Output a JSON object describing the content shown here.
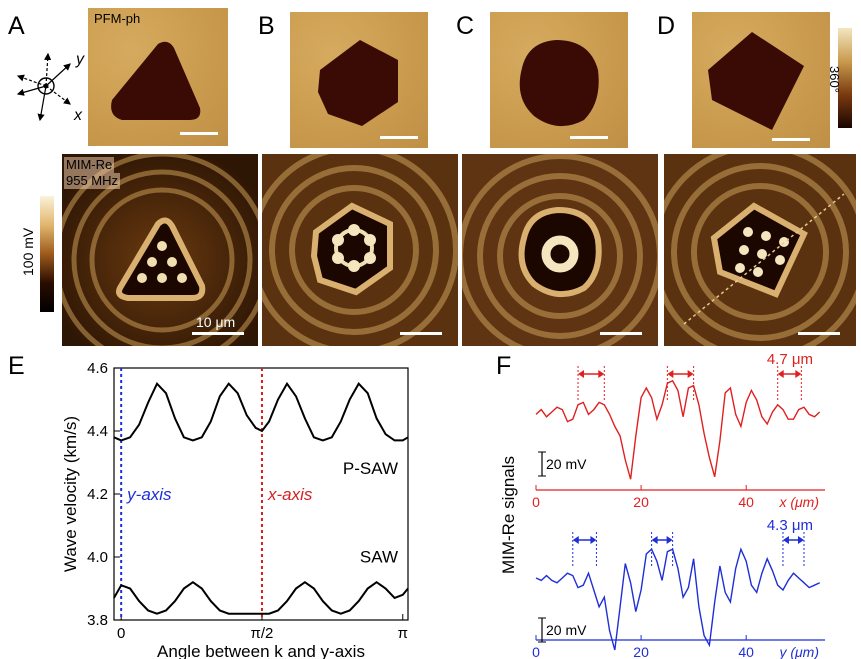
{
  "panels": {
    "A": "A",
    "B": "B",
    "C": "C",
    "D": "D",
    "E": "E",
    "F": "F"
  },
  "top_row": {
    "pfm_tag": "PFM-ph",
    "mim_tag_line1": "MIM-Re",
    "mim_tag_line2": "955 MHz",
    "scale_label": "10 μm",
    "phase_colorbar_label": "360°",
    "mim_colorbar_label": "100 mV",
    "axes_x": "x",
    "axes_y": "y"
  },
  "chart_data": [
    {
      "type": "line",
      "panel": "E",
      "xlabel": "Angle between k and y-axis",
      "ylabel": "Wave velocity (km/s)",
      "xlim": [
        -0.08,
        3.2
      ],
      "ylim": [
        3.8,
        4.6
      ],
      "yticks": [
        "3.8",
        "4.0",
        "4.2",
        "4.4",
        "4.6"
      ],
      "xticks": [
        "0",
        "π/2",
        "π"
      ],
      "xtick_values": [
        0,
        1.5708,
        3.1416
      ],
      "annotations": [
        {
          "text": "y-axis",
          "x": 0,
          "color": "#1f2fd6"
        },
        {
          "text": "x-axis",
          "x": 1.5708,
          "color": "#d62020"
        }
      ],
      "series": [
        {
          "name": "P-SAW",
          "x": [
            -0.08,
            0,
            0.1,
            0.2,
            0.3,
            0.4,
            0.5,
            0.6,
            0.7,
            0.8,
            0.9,
            1.0,
            1.1,
            1.2,
            1.3,
            1.4,
            1.5,
            1.5708,
            1.65,
            1.75,
            1.85,
            1.95,
            2.05,
            2.15,
            2.25,
            2.35,
            2.45,
            2.55,
            2.65,
            2.75,
            2.85,
            2.95,
            3.05,
            3.1416,
            3.2
          ],
          "values": [
            4.38,
            4.37,
            4.38,
            4.42,
            4.49,
            4.55,
            4.52,
            4.44,
            4.38,
            4.37,
            4.38,
            4.43,
            4.51,
            4.55,
            4.52,
            4.45,
            4.41,
            4.4,
            4.43,
            4.5,
            4.55,
            4.51,
            4.44,
            4.38,
            4.37,
            4.38,
            4.43,
            4.5,
            4.55,
            4.52,
            4.44,
            4.39,
            4.37,
            4.37,
            4.38
          ]
        },
        {
          "name": "SAW",
          "x": [
            -0.08,
            0,
            0.1,
            0.2,
            0.3,
            0.4,
            0.5,
            0.6,
            0.7,
            0.8,
            0.9,
            1.0,
            1.1,
            1.2,
            1.3,
            1.4,
            1.5,
            1.5708,
            1.65,
            1.75,
            1.85,
            1.95,
            2.05,
            2.15,
            2.25,
            2.35,
            2.45,
            2.55,
            2.65,
            2.75,
            2.85,
            2.95,
            3.05,
            3.1416,
            3.2
          ],
          "values": [
            3.87,
            3.91,
            3.9,
            3.86,
            3.83,
            3.82,
            3.83,
            3.86,
            3.9,
            3.92,
            3.9,
            3.86,
            3.83,
            3.82,
            3.82,
            3.82,
            3.82,
            3.82,
            3.82,
            3.83,
            3.86,
            3.9,
            3.92,
            3.9,
            3.86,
            3.83,
            3.82,
            3.83,
            3.86,
            3.9,
            3.92,
            3.9,
            3.87,
            3.88,
            3.9
          ]
        }
      ]
    },
    {
      "type": "line",
      "panel": "F",
      "ylabel": "MIM-Re signals",
      "scale_label": "20 mV",
      "subplots": [
        {
          "xlabel": "x (μm)",
          "color": "#e02020",
          "xlim": [
            0,
            55
          ],
          "xticks": [
            "0",
            "20",
            "40"
          ],
          "xtick_values": [
            0,
            20,
            40
          ],
          "annotation": "4.7 μm",
          "x": [
            0,
            1,
            2,
            3,
            4,
            5,
            6,
            7,
            8,
            9,
            10,
            11,
            12,
            13,
            14,
            15,
            16,
            17,
            18,
            19,
            20,
            21,
            22,
            23,
            24,
            25,
            26,
            27,
            28,
            29,
            30,
            31,
            32,
            33,
            34,
            35,
            36,
            37,
            38,
            39,
            40,
            41,
            42,
            43,
            44,
            45,
            46,
            47,
            48,
            49,
            50,
            51,
            52,
            53,
            54
          ],
          "values": [
            -1,
            1,
            -2,
            0,
            2,
            1,
            -4,
            -3,
            3,
            4,
            -1,
            1,
            4,
            3,
            -1,
            -6,
            -10,
            -20,
            -28,
            -10,
            6,
            10,
            6,
            -3,
            3,
            12,
            13,
            9,
            -2,
            10,
            11,
            3,
            -9,
            -19,
            -27,
            -12,
            8,
            10,
            -1,
            -6,
            4,
            9,
            5,
            -2,
            -5,
            0,
            3,
            1,
            -3,
            -3,
            1,
            2,
            -1,
            -2,
            0
          ]
        },
        {
          "xlabel": "y (μm)",
          "color": "#1f2fd6",
          "xlim": [
            0,
            55
          ],
          "xticks": [
            "0",
            "20",
            "40"
          ],
          "xtick_values": [
            0,
            20,
            40
          ],
          "annotation": "4.3 μm",
          "x": [
            0,
            1,
            2,
            3,
            4,
            5,
            6,
            7,
            8,
            9,
            10,
            11,
            12,
            13,
            14,
            15,
            16,
            17,
            18,
            19,
            20,
            21,
            22,
            23,
            24,
            25,
            26,
            27,
            28,
            29,
            30,
            31,
            32,
            33,
            34,
            35,
            36,
            37,
            38,
            39,
            40,
            41,
            42,
            43,
            44,
            45,
            46,
            47,
            48,
            49,
            50,
            51,
            52,
            53,
            54
          ],
          "values": [
            0,
            -1,
            1,
            -1,
            -2,
            0,
            2,
            1,
            -4,
            -3,
            2,
            -5,
            -12,
            -8,
            -22,
            -30,
            -12,
            6,
            -2,
            -14,
            -5,
            10,
            12,
            7,
            -1,
            11,
            12,
            4,
            -8,
            -4,
            8,
            -12,
            -24,
            -28,
            -10,
            5,
            -6,
            -10,
            4,
            12,
            7,
            -3,
            -6,
            2,
            8,
            3,
            -3,
            -5,
            -1,
            2,
            0,
            -2,
            -4,
            -3,
            -2
          ]
        }
      ]
    }
  ]
}
